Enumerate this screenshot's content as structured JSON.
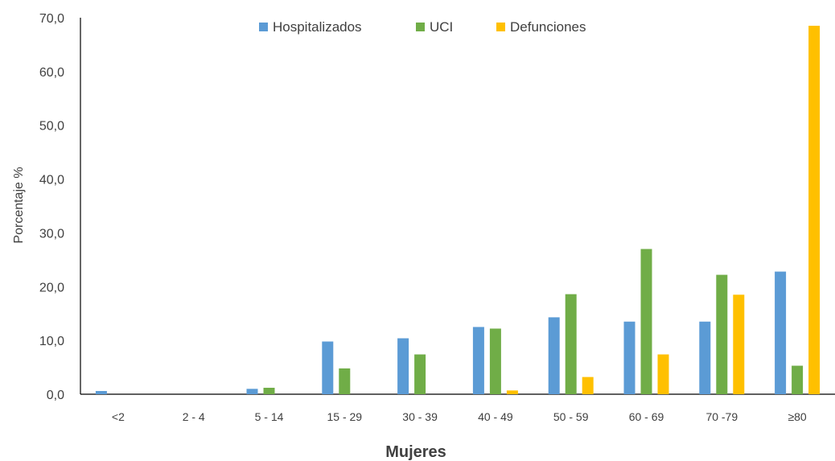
{
  "chart_data": {
    "type": "bar",
    "title": "",
    "xlabel": "Mujeres",
    "ylabel": "Porcentaje %",
    "ylim": [
      0,
      70
    ],
    "yticks": [
      "0,0",
      "10,0",
      "20,0",
      "30,0",
      "40,0",
      "50,0",
      "60,0",
      "70,0"
    ],
    "categories": [
      "<2",
      "2 - 4",
      "5 - 14",
      "15 - 29",
      "30 - 39",
      "40 - 49",
      "50 - 59",
      "60 - 69",
      "70 -79",
      "≥80"
    ],
    "series": [
      {
        "name": "Hospitalizados",
        "color": "#5B9BD5",
        "values": [
          0.6,
          0.0,
          1.0,
          9.8,
          10.4,
          12.5,
          14.3,
          13.5,
          13.5,
          22.8
        ]
      },
      {
        "name": "UCI",
        "color": "#70AD47",
        "values": [
          0.0,
          0.0,
          1.2,
          4.8,
          7.4,
          12.2,
          18.6,
          27.0,
          22.2,
          5.3
        ]
      },
      {
        "name": "Defunciones",
        "color": "#FFC000",
        "values": [
          0.0,
          0.0,
          0.0,
          0.0,
          0.0,
          0.7,
          3.2,
          7.4,
          18.5,
          68.5
        ]
      }
    ],
    "legend_position": "top-center",
    "grid": false
  }
}
